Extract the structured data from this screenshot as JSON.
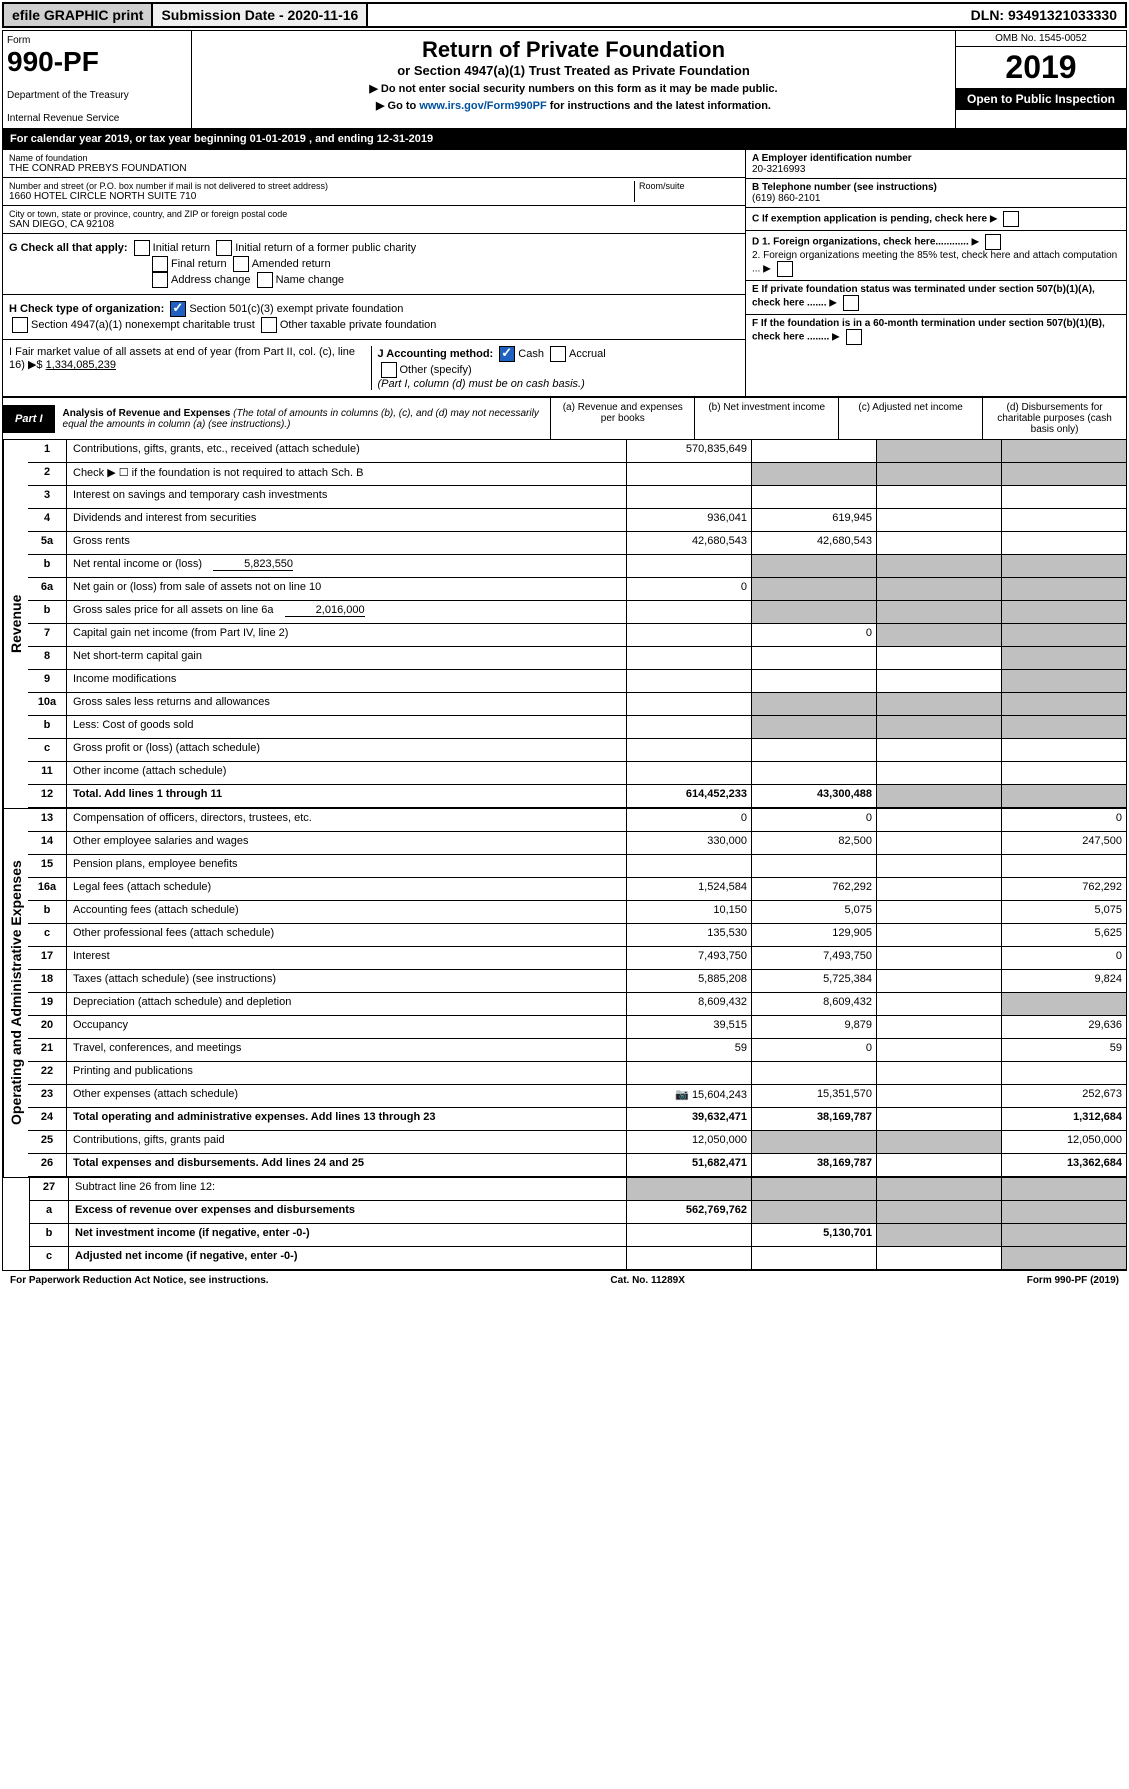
{
  "top": {
    "efile": "efile GRAPHIC print",
    "submission": "Submission Date - 2020-11-16",
    "dln": "DLN: 93491321033330"
  },
  "header": {
    "form": "Form",
    "form_num": "990-PF",
    "dept": "Department of the Treasury",
    "irs": "Internal Revenue Service",
    "title": "Return of Private Foundation",
    "subtitle": "or Section 4947(a)(1) Trust Treated as Private Foundation",
    "note1": "▶ Do not enter social security numbers on this form as it may be made public.",
    "note2": "▶ Go to www.irs.gov/Form990PF for instructions and the latest information.",
    "omb": "OMB No. 1545-0052",
    "year": "2019",
    "open": "Open to Public Inspection"
  },
  "cal_year": "For calendar year 2019, or tax year beginning 01-01-2019             , and ending 12-31-2019",
  "info": {
    "name_lbl": "Name of foundation",
    "name": "THE CONRAD PREBYS FOUNDATION",
    "addr_lbl": "Number and street (or P.O. box number if mail is not delivered to street address)",
    "room_lbl": "Room/suite",
    "addr": "1660 HOTEL CIRCLE NORTH SUITE 710",
    "city_lbl": "City or town, state or province, country, and ZIP or foreign postal code",
    "city": "SAN DIEGO, CA  92108",
    "a_lbl": "A Employer identification number",
    "a_val": "20-3216993",
    "b_lbl": "B Telephone number (see instructions)",
    "b_val": "(619) 860-2101",
    "c_lbl": "C If exemption application is pending, check here",
    "d1": "D 1. Foreign organizations, check here............",
    "d2": "2. Foreign organizations meeting the 85% test, check here and attach computation ...",
    "e": "E  If private foundation status was terminated under section 507(b)(1)(A), check here .......",
    "f": "F  If the foundation is in a 60-month termination under section 507(b)(1)(B), check here ........"
  },
  "g": {
    "lbl": "G Check all that apply:",
    "initial": "Initial return",
    "initial_former": "Initial return of a former public charity",
    "final": "Final return",
    "amended": "Amended return",
    "addr_change": "Address change",
    "name_change": "Name change"
  },
  "h": {
    "lbl": "H Check type of organization:",
    "501c3": "Section 501(c)(3) exempt private foundation",
    "4947": "Section 4947(a)(1) nonexempt charitable trust",
    "other_taxable": "Other taxable private foundation"
  },
  "i": {
    "lbl": "I Fair market value of all assets at end of year (from Part II, col. (c), line 16) ▶$",
    "val": "1,334,085,239"
  },
  "j": {
    "lbl": "J Accounting method:",
    "cash": "Cash",
    "accrual": "Accrual",
    "other": "Other (specify)",
    "note": "(Part I, column (d) must be on cash basis.)"
  },
  "part1": {
    "label": "Part I",
    "title": "Analysis of Revenue and Expenses",
    "sub": "(The total of amounts in columns (b), (c), and (d) may not necessarily equal the amounts in column (a) (see instructions).)",
    "col_a": "(a)   Revenue and expenses per books",
    "col_b": "(b)  Net investment income",
    "col_c": "(c)  Adjusted net income",
    "col_d": "(d)  Disbursements for charitable purposes (cash basis only)"
  },
  "vert_rev": "Revenue",
  "vert_exp": "Operating and Administrative Expenses",
  "rows": {
    "r1": {
      "n": "1",
      "lbl": "Contributions, gifts, grants, etc., received (attach schedule)",
      "a": "570,835,649"
    },
    "r2": {
      "n": "2",
      "lbl": "Check ▶ ☐ if the foundation is not required to attach Sch. B"
    },
    "r3": {
      "n": "3",
      "lbl": "Interest on savings and temporary cash investments"
    },
    "r4": {
      "n": "4",
      "lbl": "Dividends and interest from securities",
      "a": "936,041",
      "b": "619,945"
    },
    "r5a": {
      "n": "5a",
      "lbl": "Gross rents",
      "a": "42,680,543",
      "b": "42,680,543"
    },
    "r5b": {
      "n": "b",
      "lbl": "Net rental income or (loss)",
      "inline": "5,823,550"
    },
    "r6a": {
      "n": "6a",
      "lbl": "Net gain or (loss) from sale of assets not on line 10",
      "a": "0"
    },
    "r6b": {
      "n": "b",
      "lbl": "Gross sales price for all assets on line 6a",
      "inline": "2,016,000"
    },
    "r7": {
      "n": "7",
      "lbl": "Capital gain net income (from Part IV, line 2)",
      "b": "0"
    },
    "r8": {
      "n": "8",
      "lbl": "Net short-term capital gain"
    },
    "r9": {
      "n": "9",
      "lbl": "Income modifications"
    },
    "r10a": {
      "n": "10a",
      "lbl": "Gross sales less returns and allowances"
    },
    "r10b": {
      "n": "b",
      "lbl": "Less: Cost of goods sold"
    },
    "r10c": {
      "n": "c",
      "lbl": "Gross profit or (loss) (attach schedule)"
    },
    "r11": {
      "n": "11",
      "lbl": "Other income (attach schedule)"
    },
    "r12": {
      "n": "12",
      "lbl": "Total. Add lines 1 through 11",
      "a": "614,452,233",
      "b": "43,300,488"
    },
    "r13": {
      "n": "13",
      "lbl": "Compensation of officers, directors, trustees, etc.",
      "a": "0",
      "b": "0",
      "d": "0"
    },
    "r14": {
      "n": "14",
      "lbl": "Other employee salaries and wages",
      "a": "330,000",
      "b": "82,500",
      "d": "247,500"
    },
    "r15": {
      "n": "15",
      "lbl": "Pension plans, employee benefits"
    },
    "r16a": {
      "n": "16a",
      "lbl": "Legal fees (attach schedule)",
      "a": "1,524,584",
      "b": "762,292",
      "d": "762,292"
    },
    "r16b": {
      "n": "b",
      "lbl": "Accounting fees (attach schedule)",
      "a": "10,150",
      "b": "5,075",
      "d": "5,075"
    },
    "r16c": {
      "n": "c",
      "lbl": "Other professional fees (attach schedule)",
      "a": "135,530",
      "b": "129,905",
      "d": "5,625"
    },
    "r17": {
      "n": "17",
      "lbl": "Interest",
      "a": "7,493,750",
      "b": "7,493,750",
      "d": "0"
    },
    "r18": {
      "n": "18",
      "lbl": "Taxes (attach schedule) (see instructions)",
      "a": "5,885,208",
      "b": "5,725,384",
      "d": "9,824"
    },
    "r19": {
      "n": "19",
      "lbl": "Depreciation (attach schedule) and depletion",
      "a": "8,609,432",
      "b": "8,609,432"
    },
    "r20": {
      "n": "20",
      "lbl": "Occupancy",
      "a": "39,515",
      "b": "9,879",
      "d": "29,636"
    },
    "r21": {
      "n": "21",
      "lbl": "Travel, conferences, and meetings",
      "a": "59",
      "b": "0",
      "d": "59"
    },
    "r22": {
      "n": "22",
      "lbl": "Printing and publications"
    },
    "r23": {
      "n": "23",
      "lbl": "Other expenses (attach schedule)",
      "a": "15,604,243",
      "b": "15,351,570",
      "d": "252,673",
      "icon": true
    },
    "r24": {
      "n": "24",
      "lbl": "Total operating and administrative expenses. Add lines 13 through 23",
      "a": "39,632,471",
      "b": "38,169,787",
      "d": "1,312,684"
    },
    "r25": {
      "n": "25",
      "lbl": "Contributions, gifts, grants paid",
      "a": "12,050,000",
      "d": "12,050,000"
    },
    "r26": {
      "n": "26",
      "lbl": "Total expenses and disbursements. Add lines 24 and 25",
      "a": "51,682,471",
      "b": "38,169,787",
      "d": "13,362,684"
    },
    "r27": {
      "n": "27",
      "lbl": "Subtract line 26 from line 12:"
    },
    "r27a": {
      "n": "a",
      "lbl": "Excess of revenue over expenses and disbursements",
      "a": "562,769,762"
    },
    "r27b": {
      "n": "b",
      "lbl": "Net investment income (if negative, enter -0-)",
      "b": "5,130,701"
    },
    "r27c": {
      "n": "c",
      "lbl": "Adjusted net income (if negative, enter -0-)"
    }
  },
  "footer": {
    "left": "For Paperwork Reduction Act Notice, see instructions.",
    "mid": "Cat. No. 11289X",
    "right": "Form 990-PF (2019)"
  }
}
